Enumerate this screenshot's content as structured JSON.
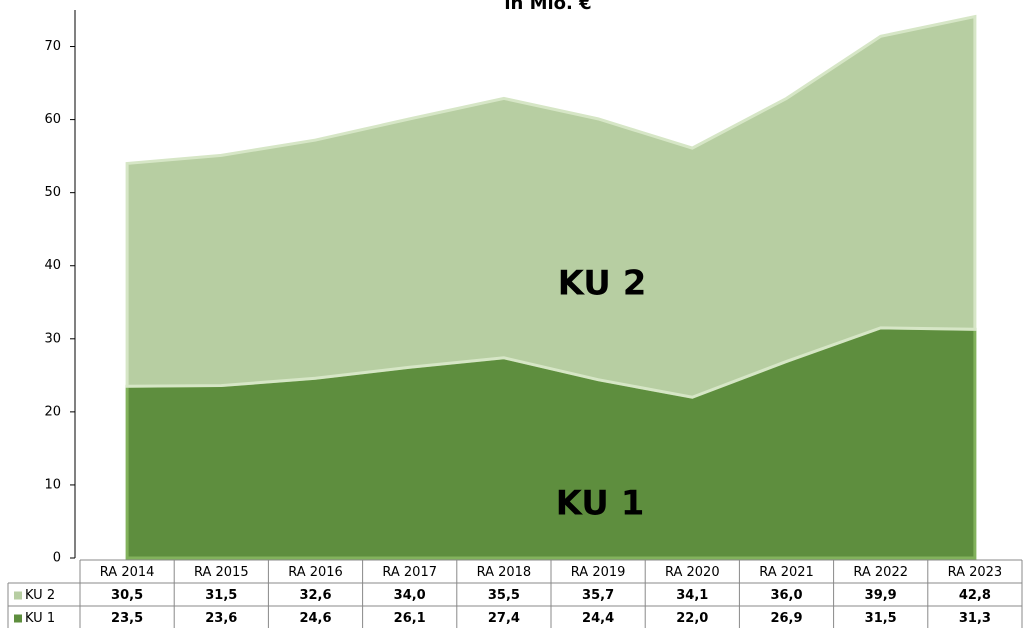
{
  "chart_data": {
    "type": "stacked_area",
    "title": "in Mio. €",
    "categories": [
      "RA 2014",
      "RA 2015",
      "RA 2016",
      "RA 2017",
      "RA 2018",
      "RA 2019",
      "RA 2020",
      "RA 2021",
      "RA 2022",
      "RA 2023"
    ],
    "series": [
      {
        "name": "KU 1",
        "color": "#5e8e3e",
        "values": [
          23.5,
          23.6,
          24.6,
          26.1,
          27.4,
          24.4,
          22.0,
          26.9,
          31.5,
          31.3
        ],
        "value_labels": [
          "23,5",
          "23,6",
          "24,6",
          "26,1",
          "27,4",
          "24,4",
          "22,0",
          "26,9",
          "31,5",
          "31,3"
        ]
      },
      {
        "name": "KU 2",
        "color": "#b7cea2",
        "values": [
          30.5,
          31.5,
          32.6,
          34.0,
          35.5,
          35.7,
          34.1,
          36.0,
          39.9,
          42.8
        ],
        "value_labels": [
          "30,5",
          "31,5",
          "32,6",
          "34,0",
          "35,5",
          "35,7",
          "34,1",
          "36,0",
          "39,9",
          "42,8"
        ]
      }
    ],
    "annotations": [
      "KU 1",
      "KU 2"
    ],
    "ylim": [
      0,
      75
    ],
    "yticks": [
      0,
      10,
      20,
      30,
      40,
      50,
      60,
      70
    ]
  }
}
